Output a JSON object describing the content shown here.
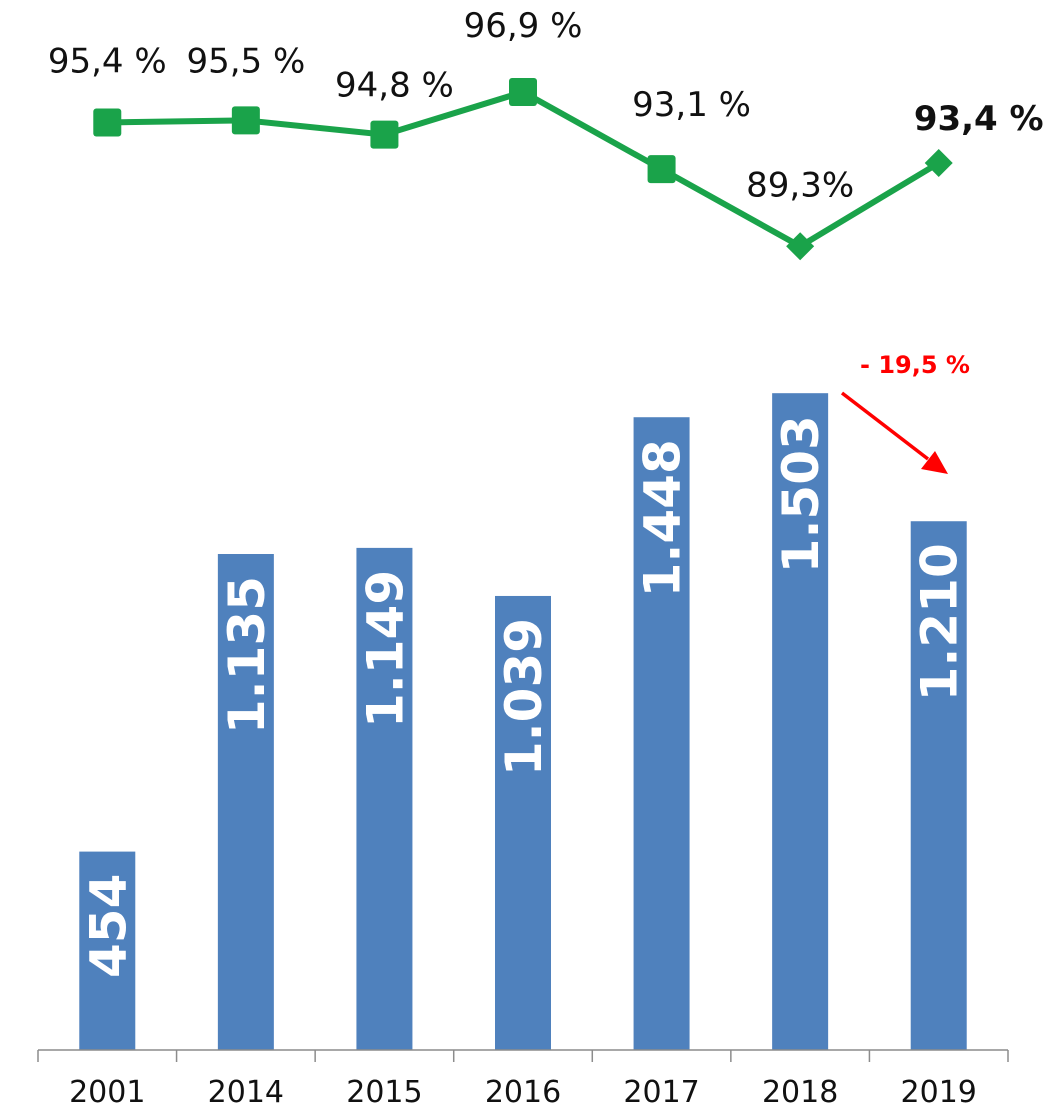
{
  "chart_data": [
    {
      "type": "line",
      "x": [
        "2001",
        "2014",
        "2015",
        "2016",
        "2017",
        "2018",
        "2019"
      ],
      "series": [
        {
          "values": [
            95.4,
            95.5,
            94.8,
            96.9,
            93.1,
            89.3,
            93.4
          ],
          "labels": [
            "95,4 %",
            "95,5 %",
            "94,8 %",
            "96,9 %",
            "93,1 %",
            "89,3%",
            "93,4 %"
          ],
          "color": "#1aa34a"
        }
      ]
    },
    {
      "type": "bar",
      "categories": [
        "2001",
        "2014",
        "2015",
        "2016",
        "2017",
        "2018",
        "2019"
      ],
      "values": [
        454,
        1135,
        1149,
        1039,
        1448,
        1503,
        1210
      ],
      "labels": [
        "454",
        "1.135",
        "1.149",
        "1.039",
        "1.448",
        "1.503",
        "1.210"
      ],
      "color": "#4f81bd",
      "annotation": {
        "text": "- 19,5 %",
        "color": "#ff0000"
      }
    }
  ]
}
